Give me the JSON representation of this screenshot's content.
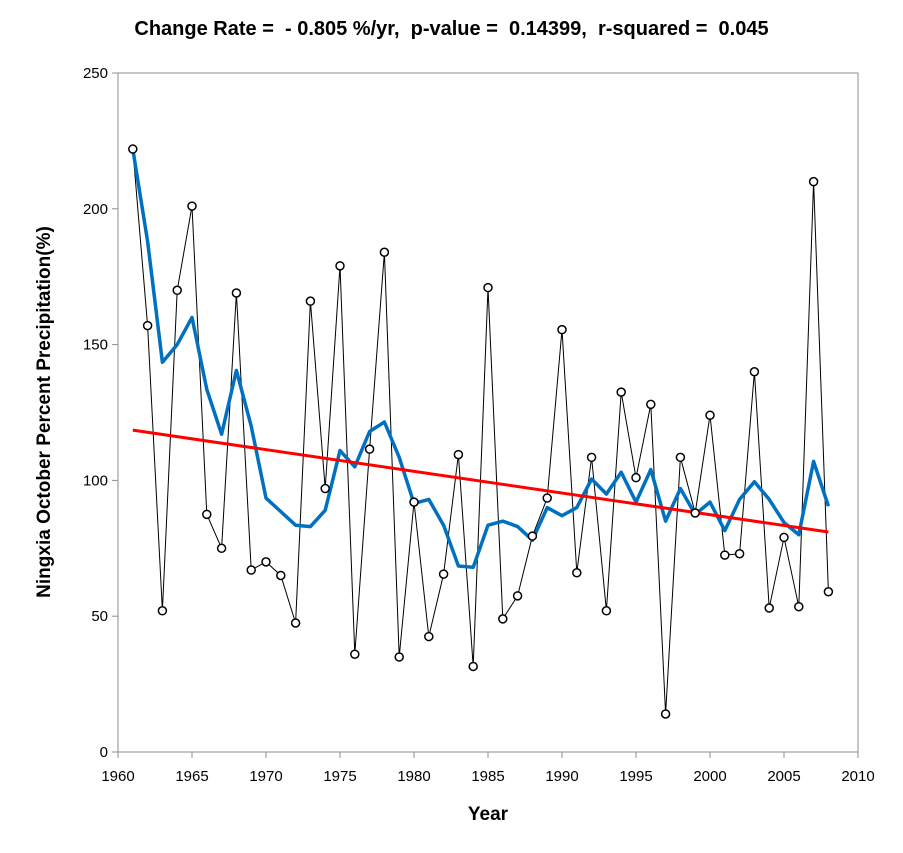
{
  "chart_data": {
    "type": "line",
    "title": "Change Rate =  - 0.805 %/yr,  p-value =  0.14399,  r-squared =  0.045",
    "xlabel": "Year",
    "ylabel": "Ningxia October Percent Precipitation(%)",
    "xlim": [
      1960,
      2010
    ],
    "ylim": [
      0,
      250
    ],
    "xticks": [
      1960,
      1965,
      1970,
      1975,
      1980,
      1985,
      1990,
      1995,
      2000,
      2005,
      2010
    ],
    "yticks": [
      0,
      50,
      100,
      150,
      200,
      250
    ],
    "grid": false,
    "legend": "none",
    "x": [
      1961,
      1962,
      1963,
      1964,
      1965,
      1966,
      1967,
      1968,
      1969,
      1970,
      1971,
      1972,
      1973,
      1974,
      1975,
      1976,
      1977,
      1978,
      1979,
      1980,
      1981,
      1982,
      1983,
      1984,
      1985,
      1986,
      1987,
      1988,
      1989,
      1990,
      1991,
      1992,
      1993,
      1994,
      1995,
      1996,
      1997,
      1998,
      1999,
      2000,
      2001,
      2002,
      2003,
      2004,
      2005,
      2006,
      2007,
      2008
    ],
    "series": [
      {
        "role": "observed",
        "color": "#000000",
        "marker": "open-circle",
        "values": [
          222,
          157,
          52,
          170,
          201,
          87.5,
          75,
          169,
          67,
          70,
          65,
          47.5,
          166,
          97,
          179,
          36,
          111.5,
          184,
          35,
          92,
          42.5,
          65.5,
          109.5,
          31.5,
          171,
          49,
          57.5,
          79.5,
          93.5,
          155.5,
          66,
          108.5,
          52,
          132.5,
          101,
          128,
          14,
          108.5,
          88,
          124,
          72.5,
          73,
          140,
          53,
          79,
          53.5,
          210,
          59
        ]
      },
      {
        "role": "moving-average",
        "color": "#0070C0",
        "values": [
          222,
          188,
          143.5,
          150,
          160,
          133.5,
          117,
          140.5,
          120,
          93.5,
          88.5,
          83.5,
          83,
          89,
          111,
          105,
          118,
          121.5,
          108.5,
          91.5,
          93,
          83.5,
          68.5,
          68,
          83.5,
          85,
          83,
          78,
          90,
          87,
          90,
          100.5,
          95,
          103,
          92,
          104,
          85,
          97,
          87.5,
          92,
          81.5,
          93,
          99.5,
          93,
          84.5,
          80,
          107,
          90.5
        ]
      },
      {
        "role": "trend",
        "color": "#FF0000",
        "x": [
          1961,
          2008
        ],
        "values": [
          118.5,
          81
        ]
      }
    ]
  }
}
